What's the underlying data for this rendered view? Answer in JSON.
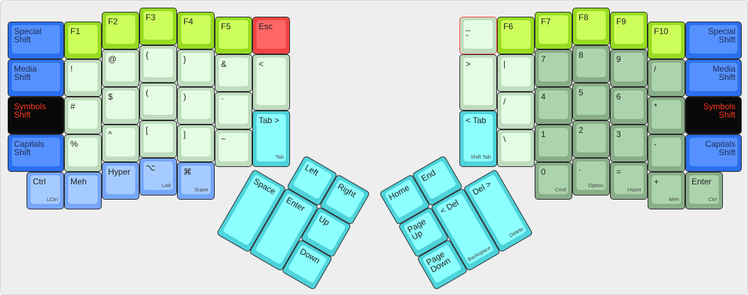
{
  "palette": {
    "blue": {
      "outer": "#2a6ff0",
      "inner": "#5591ff",
      "text": "#1e2a50"
    },
    "black": {
      "outer": "#0b0b0b",
      "inner": "#080808",
      "text": "#ff3a22"
    },
    "lime": {
      "outer": "#97dc22",
      "inner": "#ccff5a",
      "text": "#222222"
    },
    "light-green": {
      "outer": "#bfdcbf",
      "inner": "#e4fce4",
      "text": "#222222"
    },
    "dark-green": {
      "outer": "#89ad89",
      "inner": "#acd4ac",
      "text": "#222222"
    },
    "cyan": {
      "outer": "#4ed3db",
      "inner": "#8cffff",
      "text": "#222222"
    },
    "light-blue": {
      "outer": "#76a6fb",
      "inner": "#a6ccff",
      "text": "#222222"
    },
    "red": {
      "outer": "#f04444",
      "inner": "#ff6666",
      "text": "#222222"
    }
  },
  "left_keys": [
    {
      "label": "Special\nShift",
      "color": "blue"
    },
    {
      "label": "Media\nShift",
      "color": "blue"
    },
    {
      "label": "Symbols\nShift",
      "color": "black"
    },
    {
      "label": "Capitals\nShift",
      "color": "blue"
    },
    {
      "label": "Ctrl",
      "sublabel": "LCtrl",
      "color": "light-blue"
    },
    {
      "label": "F1",
      "color": "lime"
    },
    {
      "label": "!",
      "color": "light-green"
    },
    {
      "label": "#",
      "color": "light-green"
    },
    {
      "label": "%",
      "color": "light-green"
    },
    {
      "label": "Meh",
      "color": "light-blue"
    },
    {
      "label": "F2",
      "color": "lime"
    },
    {
      "label": "@",
      "color": "light-green"
    },
    {
      "label": "$",
      "color": "light-green"
    },
    {
      "label": "^",
      "color": "light-green"
    },
    {
      "label": "Hyper",
      "color": "light-blue"
    },
    {
      "label": "F3",
      "color": "lime"
    },
    {
      "label": "{",
      "color": "light-green"
    },
    {
      "label": "(",
      "color": "light-green"
    },
    {
      "label": "[",
      "color": "light-green"
    },
    {
      "label": "⌥",
      "sublabel": "LAlt",
      "color": "light-blue"
    },
    {
      "label": "F4",
      "color": "lime"
    },
    {
      "label": "}",
      "color": "light-green"
    },
    {
      "label": ")",
      "color": "light-green"
    },
    {
      "label": "]",
      "color": "light-green"
    },
    {
      "label": "⌘",
      "sublabel": "Super",
      "color": "light-blue"
    },
    {
      "label": "F5",
      "color": "lime"
    },
    {
      "label": "&",
      "color": "light-green"
    },
    {
      "label": "`",
      "color": "light-green"
    },
    {
      "label": "~",
      "color": "light-green"
    },
    {
      "label": "Esc",
      "color": "red"
    },
    {
      "label": "<",
      "color": "light-green"
    },
    {
      "label": "Tab >",
      "sublabel": "Tab",
      "color": "cyan"
    }
  ],
  "right_keys": [
    {
      "label": "_\n-",
      "color": "light-green",
      "highlight": "#ff4444"
    },
    {
      "label": ">",
      "color": "light-green"
    },
    {
      "label": "< Tab",
      "sublabel": "Shift Tab",
      "color": "cyan"
    },
    {
      "label": "F6",
      "color": "lime"
    },
    {
      "label": "|",
      "color": "light-green"
    },
    {
      "label": "/",
      "color": "light-green"
    },
    {
      "label": "\\",
      "color": "light-green"
    },
    {
      "label": "F7",
      "color": "lime"
    },
    {
      "label": "7",
      "color": "dark-green"
    },
    {
      "label": "4",
      "color": "dark-green"
    },
    {
      "label": "1",
      "color": "dark-green"
    },
    {
      "label": "0",
      "sublabel": "Cmd",
      "color": "dark-green"
    },
    {
      "label": "F8",
      "color": "lime"
    },
    {
      "label": "8",
      "color": "dark-green"
    },
    {
      "label": "5",
      "color": "dark-green"
    },
    {
      "label": "2",
      "color": "dark-green"
    },
    {
      "label": ".",
      "sublabel": "Option",
      "color": "dark-green"
    },
    {
      "label": "F9",
      "color": "lime"
    },
    {
      "label": "9",
      "color": "dark-green"
    },
    {
      "label": "6",
      "color": "dark-green"
    },
    {
      "label": "3",
      "color": "dark-green"
    },
    {
      "label": "=",
      "sublabel": "Hyper",
      "color": "dark-green"
    },
    {
      "label": "F10",
      "color": "lime"
    },
    {
      "label": "/",
      "color": "dark-green"
    },
    {
      "label": "*",
      "color": "dark-green"
    },
    {
      "label": "-",
      "color": "dark-green"
    },
    {
      "label": "+",
      "sublabel": "Meh",
      "color": "dark-green"
    },
    {
      "label": "Special\nShift",
      "color": "blue"
    },
    {
      "label": "Media\nShift",
      "color": "blue"
    },
    {
      "label": "Symbols\nShift",
      "color": "black"
    },
    {
      "label": "Capitals\nShift",
      "color": "blue"
    },
    {
      "label": "Enter",
      "sublabel": "Ctrl",
      "color": "dark-green"
    }
  ],
  "left_thumb": [
    {
      "label": "Left",
      "color": "cyan"
    },
    {
      "label": "Right",
      "color": "cyan"
    },
    {
      "label": "Space",
      "color": "cyan"
    },
    {
      "label": "Enter",
      "color": "cyan"
    },
    {
      "label": "Up",
      "color": "cyan"
    },
    {
      "label": "Down",
      "color": "cyan"
    }
  ],
  "right_thumb": [
    {
      "label": "Home",
      "color": "cyan"
    },
    {
      "label": "End",
      "color": "cyan"
    },
    {
      "label": "Page\nUp",
      "color": "cyan"
    },
    {
      "label": "Page\nDown",
      "color": "cyan"
    },
    {
      "label": "< Del",
      "sublabel": "Backspace",
      "color": "cyan"
    },
    {
      "label": "Del >",
      "sublabel": "Delete",
      "color": "cyan"
    }
  ]
}
